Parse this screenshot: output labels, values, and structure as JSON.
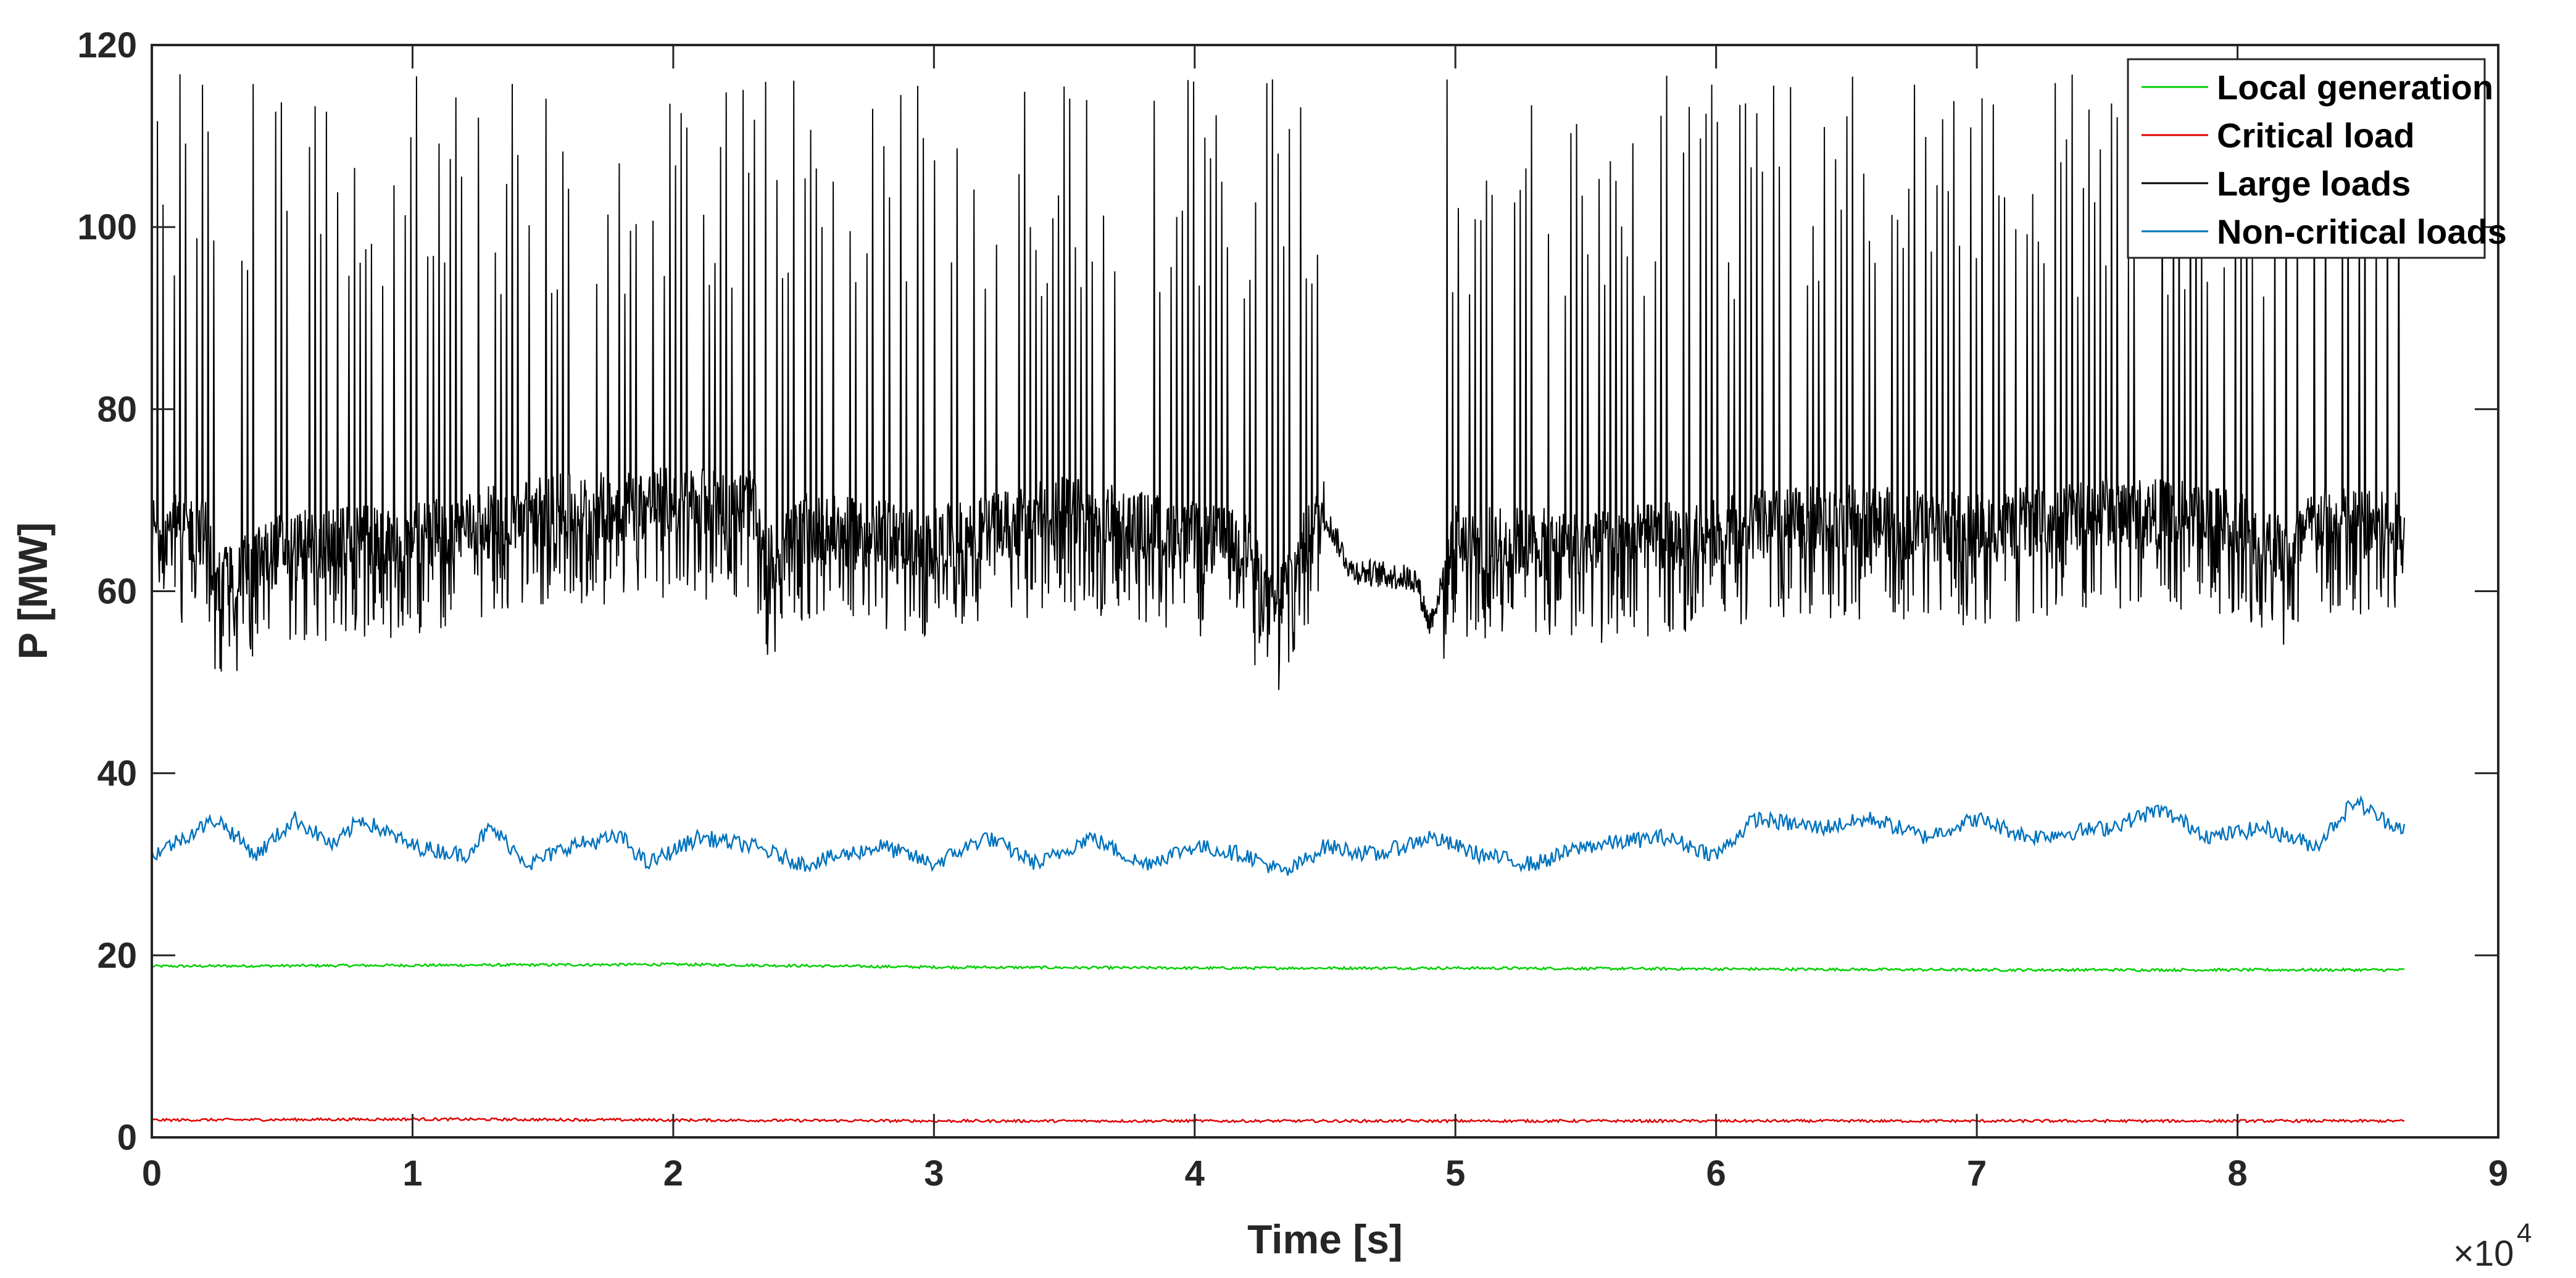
{
  "chart_data": {
    "type": "line",
    "xlabel": "Time [s]",
    "ylabel": "P [MW]",
    "x_multiplier": "×10",
    "x_multiplier_exp": "4",
    "xlim": [
      0,
      9
    ],
    "ylim": [
      0,
      120
    ],
    "x_ticks": [
      "0",
      "1",
      "2",
      "3",
      "4",
      "5",
      "6",
      "7",
      "8",
      "9"
    ],
    "y_ticks": [
      "0",
      "20",
      "40",
      "60",
      "80",
      "100",
      "120"
    ],
    "x_end": 8.64,
    "grid": false,
    "legend_position": "top-right",
    "series": [
      {
        "name": "Local generation",
        "color": "#00d000",
        "baseline": [
          [
            0,
            18.8
          ],
          [
            1,
            18.9
          ],
          [
            2,
            19.0
          ],
          [
            3,
            18.7
          ],
          [
            4,
            18.6
          ],
          [
            5,
            18.6
          ],
          [
            6,
            18.5
          ],
          [
            7,
            18.4
          ],
          [
            8,
            18.4
          ],
          [
            8.64,
            18.4
          ]
        ]
      },
      {
        "name": "Critical load",
        "color": "#e00000",
        "baseline": [
          [
            0,
            1.9
          ],
          [
            1,
            2.0
          ],
          [
            2,
            1.9
          ],
          [
            3,
            1.8
          ],
          [
            4,
            1.8
          ],
          [
            5,
            1.8
          ],
          [
            6,
            1.8
          ],
          [
            7,
            1.8
          ],
          [
            8,
            1.8
          ],
          [
            8.64,
            1.8
          ]
        ]
      },
      {
        "name": "Large loads",
        "color": "#000000",
        "baseline": [
          [
            0,
            66
          ],
          [
            0.2,
            66
          ],
          [
            0.25,
            60
          ],
          [
            0.5,
            64
          ],
          [
            1,
            65
          ],
          [
            1.5,
            68
          ],
          [
            2,
            69
          ],
          [
            2.3,
            69
          ],
          [
            2.35,
            62
          ],
          [
            2.5,
            66
          ],
          [
            2.9,
            65
          ],
          [
            2.95,
            64
          ],
          [
            3.5,
            68
          ],
          [
            4.2,
            64
          ],
          [
            4.3,
            57
          ],
          [
            4.4,
            63
          ],
          [
            4.5,
            68
          ],
          [
            4.6,
            62
          ],
          [
            4.85,
            61
          ],
          [
            4.9,
            56
          ],
          [
            5.0,
            65
          ],
          [
            5.5,
            64
          ],
          [
            6.0,
            66
          ],
          [
            6.5,
            67
          ],
          [
            7.0,
            66
          ],
          [
            7.5,
            68
          ],
          [
            8.0,
            67
          ],
          [
            8.2,
            63
          ],
          [
            8.3,
            67
          ],
          [
            8.64,
            66
          ]
        ],
        "spike_max": 120,
        "gaps": [
          [
            4.5,
            4.95
          ]
        ]
      },
      {
        "name": "Non-critical loads",
        "color": "#0072bd",
        "baseline": [
          [
            0,
            31
          ],
          [
            0.25,
            35
          ],
          [
            0.4,
            31
          ],
          [
            0.55,
            35
          ],
          [
            0.7,
            32
          ],
          [
            0.8,
            35
          ],
          [
            1,
            32
          ],
          [
            1.2,
            31
          ],
          [
            1.3,
            34
          ],
          [
            1.45,
            30
          ],
          [
            1.6,
            32
          ],
          [
            1.8,
            33
          ],
          [
            1.9,
            30
          ],
          [
            2.1,
            33
          ],
          [
            2.3,
            32
          ],
          [
            2.5,
            30
          ],
          [
            2.8,
            32
          ],
          [
            3.0,
            30
          ],
          [
            3.2,
            33
          ],
          [
            3.4,
            30
          ],
          [
            3.6,
            33
          ],
          [
            3.8,
            30
          ],
          [
            4.0,
            32
          ],
          [
            4.2,
            31
          ],
          [
            4.35,
            29
          ],
          [
            4.5,
            32
          ],
          [
            4.7,
            31
          ],
          [
            4.9,
            33
          ],
          [
            5.1,
            31
          ],
          [
            5.3,
            30
          ],
          [
            5.5,
            32
          ],
          [
            5.8,
            33
          ],
          [
            6.0,
            31
          ],
          [
            6.15,
            35
          ],
          [
            6.4,
            34
          ],
          [
            6.6,
            35
          ],
          [
            6.8,
            33
          ],
          [
            7.0,
            35
          ],
          [
            7.2,
            33
          ],
          [
            7.5,
            34
          ],
          [
            7.7,
            36
          ],
          [
            7.9,
            33
          ],
          [
            8.1,
            34
          ],
          [
            8.3,
            32
          ],
          [
            8.45,
            37
          ],
          [
            8.55,
            35
          ],
          [
            8.64,
            34
          ]
        ]
      }
    ]
  }
}
